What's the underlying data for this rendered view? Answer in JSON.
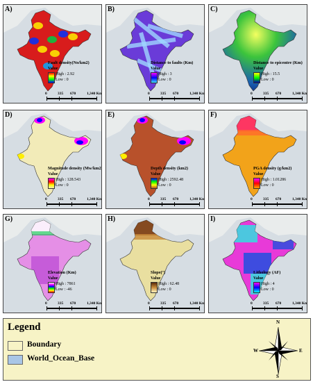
{
  "colors": {
    "ocean": "#d6dde3",
    "land_context": "#eef0ee",
    "legend_bg": "#f7f3c6",
    "boundary_swatch": "#f7f3c6",
    "ocean_swatch": "#a9c6e6"
  },
  "panels": [
    {
      "label": "A)",
      "title": "Fault density(No/km2)",
      "value_label": "Value",
      "high": "High : 2.92",
      "low": "Low : 0",
      "fill": "#d81c1c",
      "ramp": [
        "#ff0000",
        "#ffff00",
        "#00ff00",
        "#0000ff"
      ],
      "pattern": "spots"
    },
    {
      "label": "B)",
      "title": "Distance to faults (Km)",
      "value_label": "Value",
      "high": "High : 3",
      "low": "Low : 0",
      "fill": "#6a3bd8",
      "ramp": [
        "#ff00ff",
        "#0000ff",
        "#40e0ff"
      ],
      "pattern": "streaks"
    },
    {
      "label": "C)",
      "title": "Distance to epicentre (Km)",
      "value_label": "Value",
      "high": "High : 15.5",
      "low": "Low : 0",
      "fill": "#2aa830",
      "ramp": [
        "#ffff00",
        "#00ff00",
        "#0000aa"
      ],
      "pattern": "gradient"
    },
    {
      "label": "D)",
      "title": "Magnitude density (Mw/km2)",
      "value_label": "Value",
      "high": "High : 128.543",
      "low": "Low : 0",
      "fill": "#f2ebb8",
      "ramp": [
        "#ff00ff",
        "#ff0000",
        "#ffff00",
        "#f2ebb8"
      ],
      "pattern": "edges"
    },
    {
      "label": "E)",
      "title": "Depth density (km2)",
      "value_label": "Value",
      "high": "High : 2592.48",
      "low": "Low : 0",
      "fill": "#b8512b",
      "ramp": [
        "#0000ff",
        "#00ff00",
        "#ffff00",
        "#b8512b"
      ],
      "pattern": "edges"
    },
    {
      "label": "F)",
      "title": "PGA density (g/km2)",
      "value_label": "Value",
      "high": "High : 1.01286",
      "low": "Low : 0",
      "fill": "#f2a31a",
      "ramp": [
        "#ff00ff",
        "#ff0000",
        "#ffa500"
      ],
      "pattern": "north"
    },
    {
      "label": "G)",
      "title": "Elevation (Km)",
      "value_label": "Value",
      "high": "High : 7861",
      "low": "Low : -46",
      "fill": "#e58fe6",
      "ramp": [
        "#ffffff",
        "#ff00ff",
        "#0000ff",
        "#00ff00",
        "#ffff00",
        "#ff0000"
      ],
      "pattern": "speckle"
    },
    {
      "label": "H)",
      "title": "Slope(°)",
      "value_label": "Value",
      "high": "High : 62.48",
      "low": "Low : 0",
      "fill": "#e9dfa0",
      "ramp": [
        "#5a2a0a",
        "#c88a3a",
        "#fff5c0"
      ],
      "pattern": "north"
    },
    {
      "label": "I)",
      "title": "Lithology (AF)",
      "value_label": "Value",
      "high": "High : 4",
      "low": "Low : 0",
      "fill": "#e83ad8",
      "ramp": [
        "#ff00ff",
        "#0000ff",
        "#00ffff"
      ],
      "pattern": "patches"
    }
  ],
  "scale_bar": {
    "labels": [
      "0",
      "335",
      "670",
      "1,340 Km"
    ]
  },
  "legend": {
    "title": "Legend",
    "items": [
      {
        "label": "Boundary"
      },
      {
        "label": "World_Ocean_Base"
      }
    ]
  },
  "compass": {
    "n": "N",
    "s": "S",
    "e": "E",
    "w": "W"
  }
}
